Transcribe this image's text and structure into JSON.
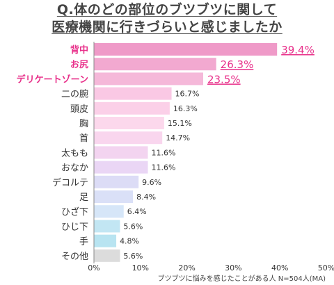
{
  "title": {
    "line1": "Q.体のどの部位のブツブツに関して",
    "line2": "医療機関に行きづらいと感じましたか"
  },
  "chart_data": {
    "type": "bar",
    "orientation": "horizontal",
    "categories": [
      "背中",
      "お尻",
      "デリケートゾーン",
      "二の腕",
      "頭皮",
      "胸",
      "首",
      "太もも",
      "おなか",
      "デコルテ",
      "足",
      "ひざ下",
      "ひじ下",
      "手",
      "その他"
    ],
    "series": [
      {
        "values": [
          39.4,
          26.3,
          23.5,
          16.7,
          16.3,
          15.1,
          14.7,
          11.6,
          11.6,
          9.6,
          8.4,
          6.4,
          5.6,
          4.8,
          5.6
        ]
      }
    ],
    "value_labels": [
      "39.4%",
      "26.3%",
      "23.5%",
      "16.7%",
      "16.3%",
      "15.1%",
      "14.7%",
      "11.6%",
      "11.6%",
      "9.6%",
      "8.4%",
      "6.4%",
      "5.6%",
      "4.8%",
      "5.6%"
    ],
    "bar_colors": [
      "#ef9ac8",
      "#f2a9d0",
      "#f5b8d9",
      "#fac8e4",
      "#fbd0e8",
      "#fcd8ec",
      "#f9d6ee",
      "#f3d4f0",
      "#ead6f5",
      "#dcdcf6",
      "#dae0f7",
      "#d6e6f8",
      "#c2e6f3",
      "#b8e4f1",
      "#dcdcdc"
    ],
    "highlight": {
      "count": 3,
      "color": "#e8308a"
    },
    "label_color": "#333333",
    "xlim": [
      0,
      50
    ],
    "xticks": [
      "0%",
      "10%",
      "20%",
      "30%",
      "40%",
      "50%"
    ],
    "grid": false,
    "footnote": "ブツブツに悩みを感じたことがある人 N=504人(MA)"
  }
}
